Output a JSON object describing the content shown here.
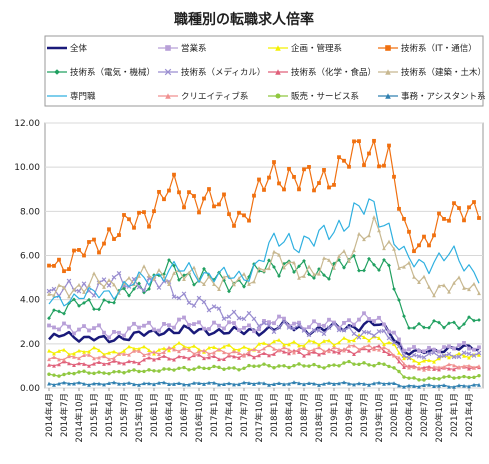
{
  "chart_data": {
    "type": "line",
    "title": "職種別の転職求人倍率",
    "ylim": [
      0,
      12
    ],
    "yticks": [
      "0.00",
      "2.00",
      "4.00",
      "6.00",
      "8.00",
      "10.00",
      "12.00"
    ],
    "xtick_labels": [
      "2014年4月",
      "2014年7月",
      "2014年10月",
      "2015年1月",
      "2015年4月",
      "2015年7月",
      "2015年10月",
      "2016年1月",
      "2016年4月",
      "2016年7月",
      "2016年10月",
      "2017年1月",
      "2017年4月",
      "2017年7月",
      "2017年10月",
      "2018年1月",
      "2018年4月",
      "2018年7月",
      "2018年10月",
      "2019年1月",
      "2019年4月",
      "2019年7月",
      "2019年10月",
      "2020年1月",
      "2020年4月",
      "2020年7月",
      "2020年10月",
      "2021年1月",
      "2021年4月"
    ],
    "grid": true,
    "legend_position": "top",
    "series": [
      {
        "name": "全体",
        "color": "#1a1a7a",
        "marker": "none",
        "width": 2.5,
        "anchors": [
          2.2,
          2.4,
          2.3,
          2.3,
          2.1,
          2.3,
          2.5,
          2.4,
          2.6,
          2.7,
          2.5,
          2.6,
          2.6,
          2.5,
          2.6,
          2.7,
          2.8,
          2.7,
          2.6,
          2.7,
          2.8,
          2.8,
          2.9,
          2.6,
          1.6,
          1.6,
          1.7,
          1.8,
          1.8,
          1.8
        ]
      },
      {
        "name": "営業系",
        "color": "#b8a0d8",
        "marker": "square",
        "anchors": [
          2.6,
          2.8,
          2.7,
          2.7,
          2.4,
          2.6,
          2.8,
          2.7,
          2.9,
          3.0,
          2.8,
          2.9,
          2.8,
          2.7,
          2.8,
          3.0,
          3.0,
          2.9,
          2.8,
          2.9,
          3.0,
          3.1,
          3.1,
          2.8,
          1.7,
          1.7,
          1.8,
          1.8,
          1.9,
          1.8
        ]
      },
      {
        "name": "企画・管理系",
        "color": "#f4f000",
        "marker": "triangle",
        "anchors": [
          1.6,
          1.7,
          1.6,
          1.7,
          1.6,
          1.7,
          1.8,
          1.7,
          1.8,
          1.9,
          1.8,
          1.8,
          1.8,
          1.8,
          1.9,
          2.0,
          2.1,
          2.0,
          2.0,
          2.1,
          2.2,
          2.2,
          2.3,
          2.1,
          1.3,
          1.2,
          1.3,
          1.4,
          1.5,
          1.5
        ]
      },
      {
        "name": "技術系（IT・通信）",
        "color": "#f07010",
        "marker": "square",
        "anchors": [
          5.8,
          5.6,
          6.0,
          6.4,
          7.0,
          7.2,
          7.6,
          8.2,
          9.0,
          8.6,
          8.8,
          8.4,
          8.0,
          7.8,
          8.6,
          9.6,
          9.8,
          9.4,
          9.2,
          9.8,
          10.2,
          10.6,
          11.0,
          10.2,
          7.0,
          6.6,
          7.0,
          7.8,
          8.4,
          8.0
        ]
      },
      {
        "name": "技術系（電気・機械）",
        "color": "#20a060",
        "marker": "diamond",
        "anchors": [
          3.4,
          3.6,
          3.8,
          3.8,
          3.9,
          4.2,
          4.6,
          4.8,
          5.4,
          5.2,
          5.0,
          5.0,
          4.8,
          4.8,
          5.2,
          5.6,
          5.6,
          5.3,
          5.2,
          5.4,
          5.6,
          5.6,
          5.8,
          5.2,
          3.0,
          2.8,
          2.8,
          2.9,
          3.0,
          3.1
        ]
      },
      {
        "name": "技術系（メディカル）",
        "color": "#9a8ed0",
        "marker": "cross",
        "anchors": [
          4.4,
          4.4,
          4.5,
          4.6,
          4.8,
          4.8,
          4.8,
          4.7,
          4.6,
          4.2,
          3.8,
          3.6,
          3.4,
          3.2,
          3.0,
          2.8,
          2.8,
          2.6,
          2.6,
          2.7,
          2.6,
          2.5,
          2.5,
          2.3,
          1.5,
          1.4,
          1.5,
          1.5,
          1.5,
          1.5
        ]
      },
      {
        "name": "技術系（化学・食品）",
        "color": "#e0607a",
        "marker": "triangle",
        "anchors": [
          1.0,
          1.1,
          1.1,
          1.1,
          1.1,
          1.2,
          1.2,
          1.3,
          1.4,
          1.4,
          1.4,
          1.4,
          1.4,
          1.4,
          1.5,
          1.6,
          1.6,
          1.6,
          1.6,
          1.6,
          1.7,
          1.7,
          1.8,
          1.6,
          1.0,
          0.9,
          0.9,
          0.9,
          0.9,
          0.9
        ]
      },
      {
        "name": "技術系（建築・土木）",
        "color": "#c8b890",
        "marker": "triangle",
        "anchors": [
          4.2,
          4.4,
          4.6,
          4.8,
          4.6,
          4.8,
          5.0,
          5.1,
          5.2,
          5.1,
          5.0,
          4.9,
          4.8,
          4.8,
          5.2,
          5.8,
          5.6,
          5.4,
          5.2,
          5.6,
          6.2,
          6.6,
          7.2,
          6.6,
          5.4,
          4.8,
          4.6,
          4.6,
          4.6,
          4.5
        ]
      },
      {
        "name": "専門職",
        "color": "#30b0e0",
        "marker": "none",
        "anchors": [
          3.9,
          4.0,
          4.2,
          4.2,
          4.3,
          4.6,
          4.8,
          5.0,
          5.4,
          5.3,
          5.2,
          5.2,
          5.0,
          5.0,
          5.6,
          6.4,
          6.8,
          6.6,
          6.6,
          7.2,
          7.6,
          8.0,
          8.2,
          7.2,
          5.8,
          5.6,
          5.8,
          6.0,
          5.6,
          5.2
        ]
      },
      {
        "name": "クリエイティブ系",
        "color": "#f09090",
        "marker": "triangle",
        "anchors": [
          1.3,
          1.4,
          1.4,
          1.4,
          1.4,
          1.5,
          1.6,
          1.6,
          1.7,
          1.7,
          1.7,
          1.6,
          1.6,
          1.6,
          1.7,
          1.8,
          1.8,
          1.7,
          1.7,
          1.8,
          1.8,
          1.8,
          1.9,
          1.7,
          1.0,
          0.9,
          0.9,
          1.0,
          1.0,
          1.0
        ]
      },
      {
        "name": "販売・サービス系",
        "color": "#90c840",
        "marker": "circle",
        "anchors": [
          0.6,
          0.6,
          0.7,
          0.7,
          0.7,
          0.7,
          0.8,
          0.8,
          0.8,
          0.9,
          0.9,
          0.9,
          0.9,
          0.9,
          1.0,
          1.0,
          1.0,
          1.0,
          1.0,
          1.0,
          1.1,
          1.1,
          1.1,
          1.0,
          0.5,
          0.4,
          0.4,
          0.5,
          0.5,
          0.5
        ]
      },
      {
        "name": "事務・アシスタント系",
        "color": "#3080b0",
        "marker": "triangle",
        "anchors": [
          0.2,
          0.2,
          0.2,
          0.2,
          0.2,
          0.2,
          0.2,
          0.2,
          0.2,
          0.2,
          0.2,
          0.2,
          0.2,
          0.2,
          0.2,
          0.2,
          0.2,
          0.2,
          0.2,
          0.2,
          0.2,
          0.2,
          0.2,
          0.2,
          0.1,
          0.1,
          0.1,
          0.1,
          0.1,
          0.1
        ]
      }
    ]
  }
}
